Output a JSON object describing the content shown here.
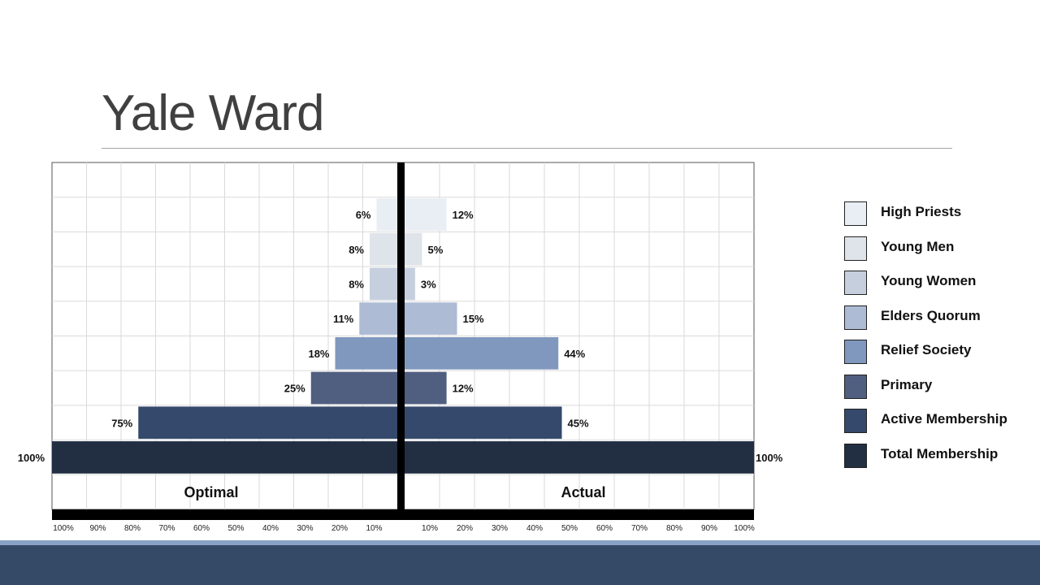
{
  "slide": {
    "title": "Yale Ward"
  },
  "chart_data": {
    "type": "bar",
    "orientation": "horizontal-butterfly",
    "categories": [
      "High Priests",
      "Young Men",
      "Young Women",
      "Elders Quorum",
      "Relief Society",
      "Primary",
      "Active Membership",
      "Total Membership"
    ],
    "series": [
      {
        "name": "Optimal",
        "values": [
          6,
          8,
          8,
          11,
          18,
          25,
          75,
          100
        ]
      },
      {
        "name": "Actual",
        "values": [
          12,
          5,
          3,
          15,
          44,
          12,
          45,
          100
        ]
      }
    ],
    "value_labels": {
      "Optimal": [
        "6%",
        "8%",
        "8%",
        "11%",
        "18%",
        "25%",
        "75%",
        "100%"
      ],
      "Actual": [
        "12%",
        "5%",
        "3%",
        "15%",
        "44%",
        "12%",
        "45%",
        "100%"
      ]
    },
    "colors": [
      "#e9eef4",
      "#dfe3ea",
      "#c6cfdd",
      "#adbbd5",
      "#8098bd",
      "#505e80",
      "#34496b",
      "#222e42"
    ],
    "left_ticks": [
      "100%",
      "90%",
      "80%",
      "70%",
      "60%",
      "50%",
      "40%",
      "30%",
      "20%",
      "10%"
    ],
    "right_ticks": [
      "10%",
      "20%",
      "30%",
      "40%",
      "50%",
      "60%",
      "70%",
      "80%",
      "90%",
      "100%"
    ],
    "xlim": [
      0,
      100
    ],
    "grid": true,
    "legend_position": "right"
  },
  "theme": {
    "footer_band": "#344a66",
    "footer_stripe": "#8aa2c6",
    "grid": "#dadada",
    "axis": "#000000"
  }
}
